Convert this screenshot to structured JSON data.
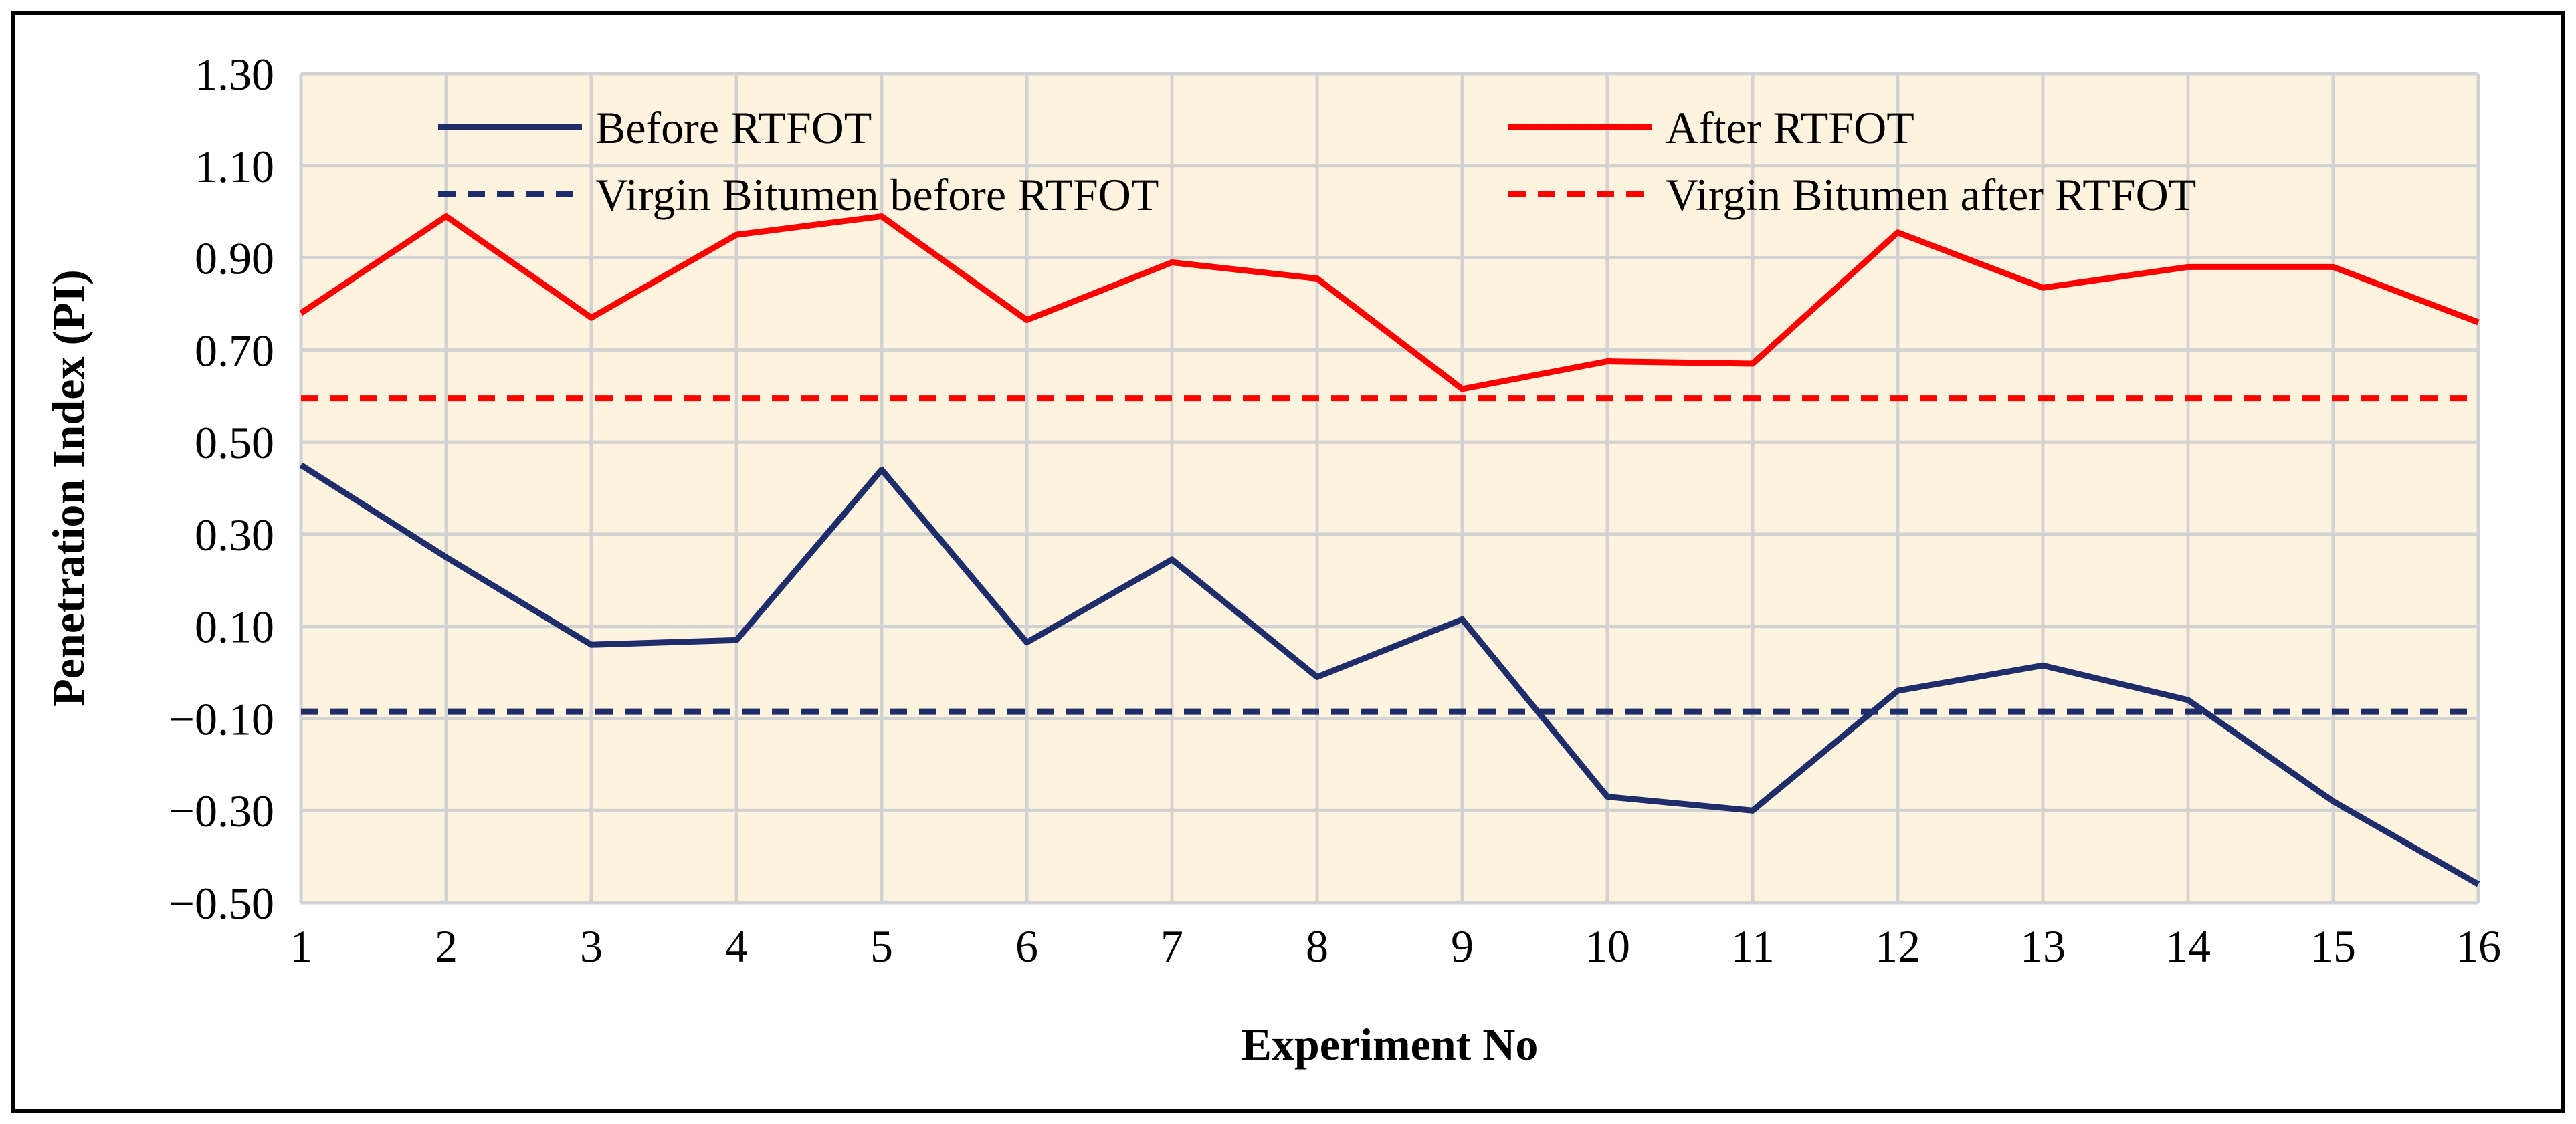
{
  "chart_data": {
    "type": "line",
    "xlabel": "Experiment No",
    "ylabel": "Penetration Index (PI)",
    "ylim": [
      -0.5,
      1.3
    ],
    "yticks": [
      -0.5,
      -0.3,
      -0.1,
      0.1,
      0.3,
      0.5,
      0.7,
      0.9,
      1.1,
      1.3
    ],
    "ytick_labels": [
      "-0.50",
      "-0.30",
      "-0.10",
      "0.10",
      "0.30",
      "0.50",
      "0.70",
      "0.90",
      "1.10",
      "1.30"
    ],
    "x": [
      1,
      2,
      3,
      4,
      5,
      6,
      7,
      8,
      9,
      10,
      11,
      12,
      13,
      14,
      15,
      16
    ],
    "x_labels": [
      "1",
      "2",
      "3",
      "4",
      "5",
      "6",
      "7",
      "8",
      "9",
      "10",
      "11",
      "12",
      "13",
      "14",
      "15",
      "16"
    ],
    "grid": "on",
    "legend_position": "top",
    "series": [
      {
        "name": "Before RTFOT",
        "color": "#1f2d6b",
        "style": "solid",
        "values": [
          0.45,
          0.25,
          0.06,
          0.07,
          0.44,
          0.065,
          0.245,
          -0.01,
          0.115,
          -0.27,
          -0.3,
          -0.04,
          0.015,
          -0.06,
          -0.28,
          -0.46
        ]
      },
      {
        "name": "After RTFOT",
        "color": "#ff0000",
        "style": "solid",
        "values": [
          0.78,
          0.99,
          0.77,
          0.95,
          0.99,
          0.765,
          0.89,
          0.855,
          0.615,
          0.675,
          0.67,
          0.955,
          0.835,
          0.88,
          0.88,
          0.76
        ]
      },
      {
        "name": "Virgin Bitumen before RTFOT",
        "color": "#1f2d6b",
        "style": "dashed",
        "values": [
          -0.085,
          -0.085,
          -0.085,
          -0.085,
          -0.085,
          -0.085,
          -0.085,
          -0.085,
          -0.085,
          -0.085,
          -0.085,
          -0.085,
          -0.085,
          -0.085,
          -0.085,
          -0.085
        ]
      },
      {
        "name": "Virgin Bitumen after RTFOT",
        "color": "#ff0000",
        "style": "dashed",
        "values": [
          0.595,
          0.595,
          0.595,
          0.595,
          0.595,
          0.595,
          0.595,
          0.595,
          0.595,
          0.595,
          0.595,
          0.595,
          0.595,
          0.595,
          0.595,
          0.595
        ]
      }
    ]
  },
  "colors": {
    "plot_background": "#fdf3de",
    "gridline": "#d2d2d2",
    "frame": "#000000"
  }
}
